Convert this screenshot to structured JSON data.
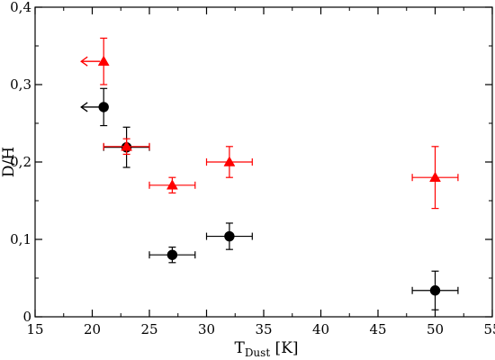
{
  "chart_data": {
    "type": "scatter",
    "xlabel": {
      "main": "T",
      "sub": "Dust",
      "unit": " [K]"
    },
    "ylabel": "D/H",
    "xlim": [
      15,
      55
    ],
    "ylim": [
      0,
      0.4
    ],
    "xticks": [
      {
        "value": 15,
        "label": "15"
      },
      {
        "value": 20,
        "label": "20"
      },
      {
        "value": 25,
        "label": "25"
      },
      {
        "value": 30,
        "label": "30"
      },
      {
        "value": 35,
        "label": "35"
      },
      {
        "value": 40,
        "label": "40"
      },
      {
        "value": 45,
        "label": "45"
      },
      {
        "value": 50,
        "label": "50"
      },
      {
        "value": 55,
        "label": "55"
      }
    ],
    "yticks": [
      {
        "value": 0,
        "label": "0"
      },
      {
        "value": 0.1,
        "label": "0,1"
      },
      {
        "value": 0.2,
        "label": "0,2"
      },
      {
        "value": 0.3,
        "label": "0,3"
      },
      {
        "value": 0.4,
        "label": "0,4"
      }
    ],
    "series": [
      {
        "marker": "circle",
        "color": "#000000",
        "points": [
          {
            "x": 21,
            "y": 0.271,
            "y_err": 0.024,
            "upper_limit_x": true
          },
          {
            "x": 23,
            "y": 0.219,
            "x_err": 2,
            "y_err": 0.026
          },
          {
            "x": 27,
            "y": 0.08,
            "x_err": 2,
            "y_err": 0.01
          },
          {
            "x": 32,
            "y": 0.104,
            "x_err": 2,
            "y_err": 0.017
          },
          {
            "x": 50,
            "y": 0.034,
            "x_err": 2,
            "y_err": 0.025
          }
        ]
      },
      {
        "marker": "triangle",
        "color": "#ff0000",
        "points": [
          {
            "x": 21,
            "y": 0.33,
            "y_err": 0.03,
            "upper_limit_x": true
          },
          {
            "x": 23,
            "y": 0.22,
            "x_err": 2,
            "y_err": 0.01
          },
          {
            "x": 27,
            "y": 0.17,
            "x_err": 2,
            "y_err": 0.01
          },
          {
            "x": 32,
            "y": 0.2,
            "x_err": 2,
            "y_err": 0.02
          },
          {
            "x": 50,
            "y": 0.18,
            "x_err": 2,
            "y_err": 0.04
          }
        ]
      }
    ],
    "grid": false,
    "legend": "none"
  }
}
